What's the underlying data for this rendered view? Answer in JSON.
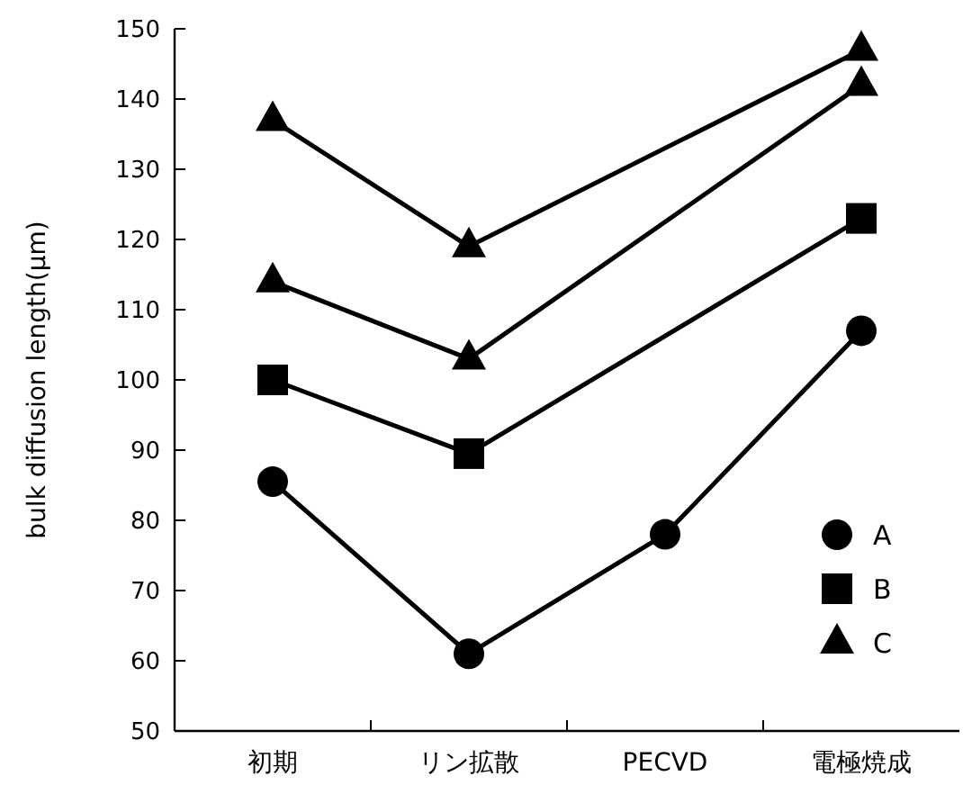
{
  "chart_data": {
    "type": "line",
    "ylabel": "bulk diffusion length(μm)",
    "categories": [
      "初期",
      "リン拡散",
      "PECVD",
      "電極焼成"
    ],
    "series": [
      {
        "name": "A",
        "color": "#000000",
        "marker": "circle",
        "values": [
          85.5,
          61,
          78,
          107
        ]
      },
      {
        "name": "B",
        "color": "#000000",
        "marker": "square",
        "values": [
          100,
          89.5,
          null,
          123
        ]
      },
      {
        "name": "C",
        "color": "#000000",
        "marker": "triangle",
        "values": [
          137,
          119,
          null,
          147
        ]
      },
      {
        "color": "#000000",
        "marker": "triangle",
        "values": [
          114,
          103,
          null,
          142
        ]
      }
    ],
    "ylim": [
      50,
      150
    ],
    "yticks": [
      50,
      60,
      70,
      80,
      90,
      100,
      110,
      120,
      130,
      140,
      150
    ],
    "grid": false,
    "legend": "bottom right",
    "line_style": "solid"
  }
}
